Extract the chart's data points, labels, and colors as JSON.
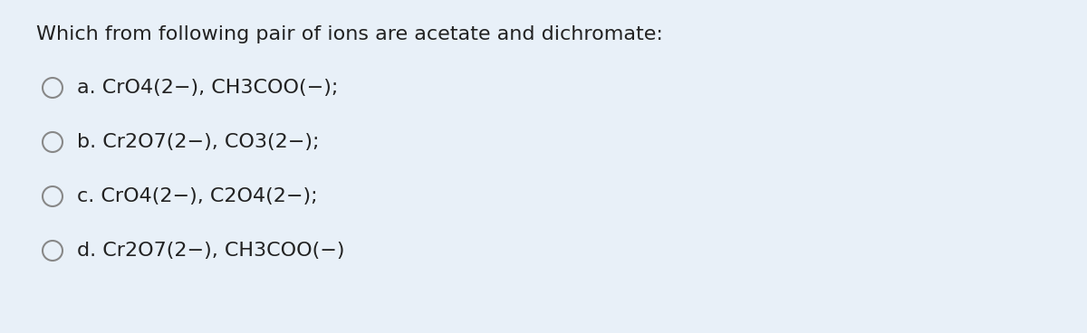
{
  "background_color": "#e8f0f8",
  "title": "Which from following pair of ions are acetate and dichromate:",
  "title_fontsize": 16,
  "title_color": "#222222",
  "options": [
    "a. CrO4(2−), CH3COO(−);",
    "b. Cr2O7(2−), CO3(2−);",
    "c. CrO4(2−), C2O4(2−);",
    "d. Cr2O7(2−), CH3COO(−)"
  ],
  "option_fontsize": 16,
  "option_color": "#222222",
  "circle_color": "#888888",
  "circle_linewidth": 1.5,
  "figwidth": 12.0,
  "figheight": 3.68,
  "dpi": 100
}
